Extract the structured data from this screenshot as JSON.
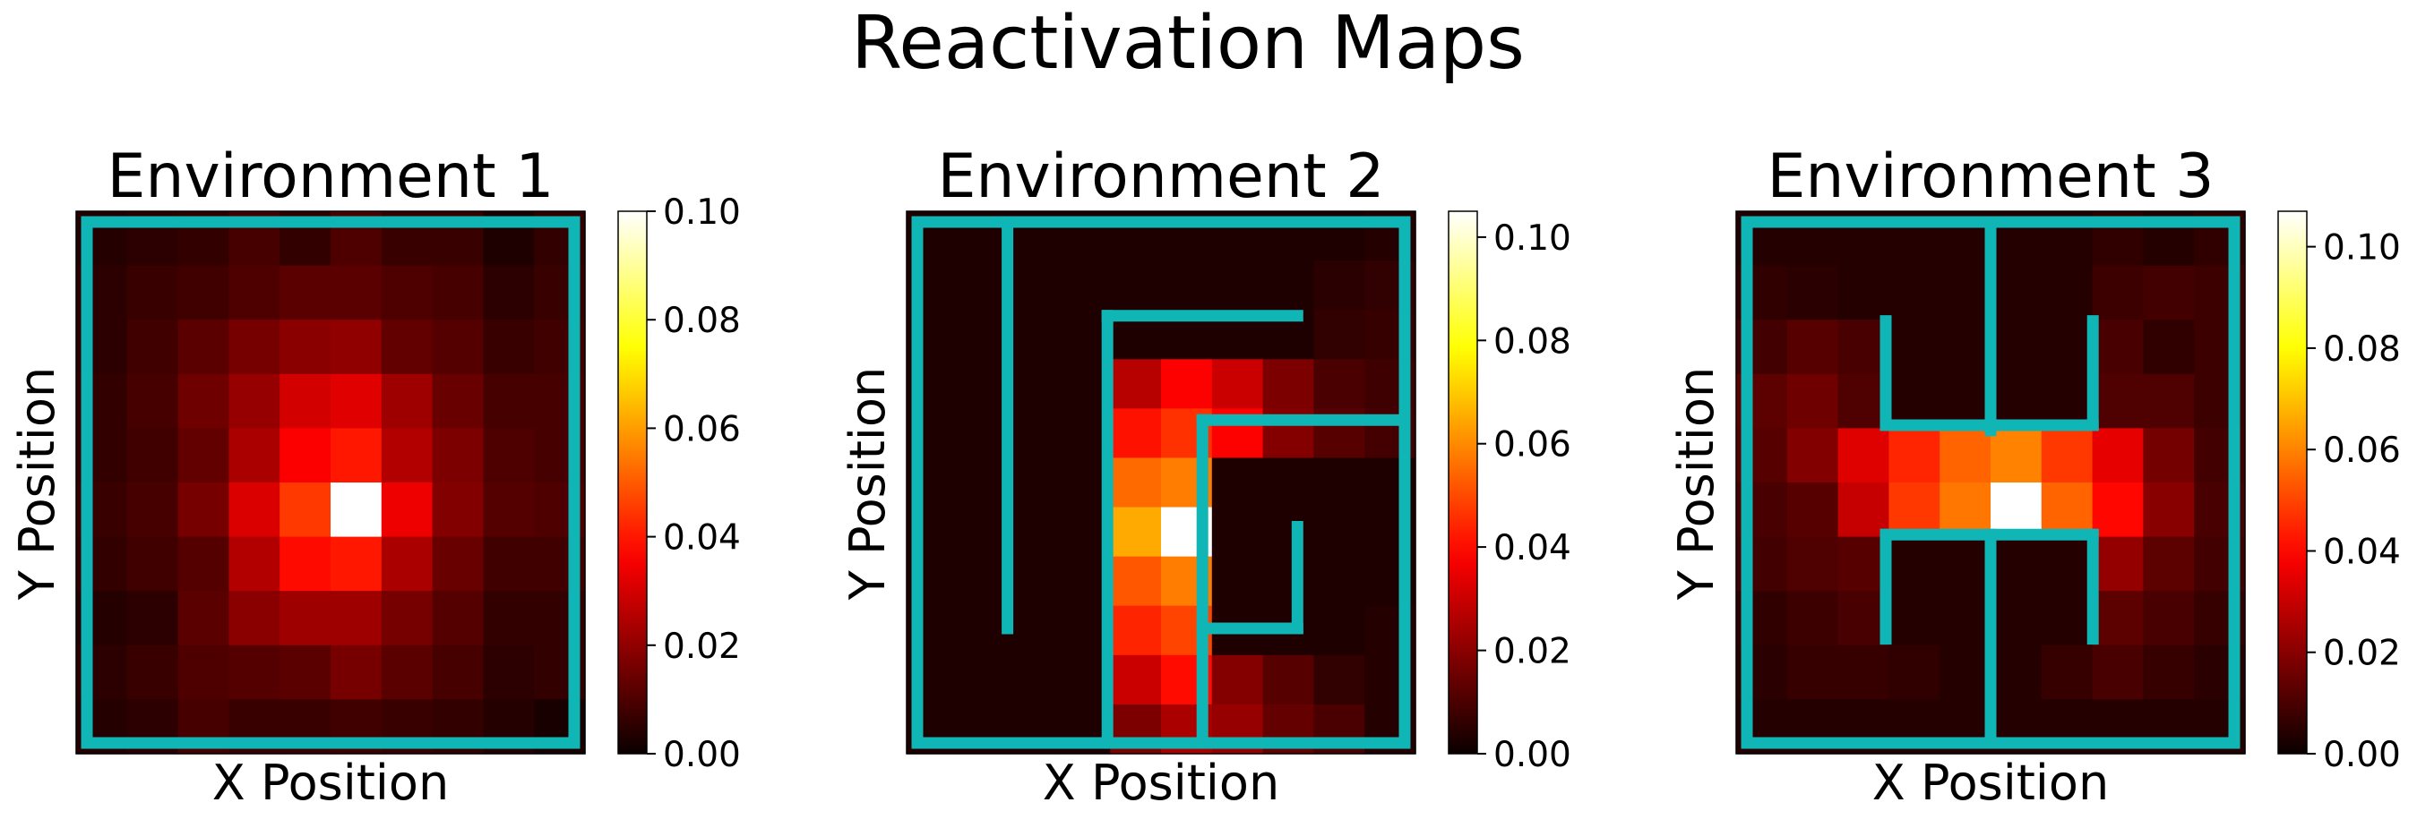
{
  "figure_title": "Reactivation Maps",
  "wall_color": "#10b5b5",
  "colormap": "hot",
  "chart_data": [
    {
      "type": "heatmap",
      "title": "Environment 1",
      "xlabel": "X Position",
      "ylabel": "Y Position",
      "colorbar": {
        "min": 0.0,
        "max": 0.1,
        "ticks": [
          0.0,
          0.02,
          0.04,
          0.06,
          0.08,
          0.1
        ],
        "tick_labels": [
          "0.00",
          "0.02",
          "0.04",
          "0.06",
          "0.08",
          "0.10"
        ]
      },
      "values": [
        [
          0.004,
          0.005,
          0.006,
          0.009,
          0.006,
          0.01,
          0.007,
          0.007,
          0.003,
          0.006
        ],
        [
          0.005,
          0.007,
          0.008,
          0.01,
          0.012,
          0.012,
          0.01,
          0.009,
          0.005,
          0.007
        ],
        [
          0.005,
          0.008,
          0.012,
          0.016,
          0.019,
          0.02,
          0.013,
          0.011,
          0.007,
          0.008
        ],
        [
          0.006,
          0.009,
          0.015,
          0.021,
          0.03,
          0.032,
          0.022,
          0.014,
          0.009,
          0.009
        ],
        [
          0.006,
          0.008,
          0.013,
          0.024,
          0.036,
          0.04,
          0.025,
          0.017,
          0.01,
          0.009
        ],
        [
          0.007,
          0.009,
          0.016,
          0.031,
          0.045,
          0.1,
          0.034,
          0.018,
          0.011,
          0.01
        ],
        [
          0.006,
          0.008,
          0.011,
          0.025,
          0.038,
          0.04,
          0.024,
          0.014,
          0.008,
          0.008
        ],
        [
          0.004,
          0.005,
          0.012,
          0.019,
          0.022,
          0.022,
          0.016,
          0.011,
          0.006,
          0.006
        ],
        [
          0.005,
          0.007,
          0.01,
          0.011,
          0.012,
          0.016,
          0.012,
          0.009,
          0.005,
          0.006
        ],
        [
          0.004,
          0.005,
          0.009,
          0.007,
          0.007,
          0.008,
          0.007,
          0.006,
          0.004,
          0.002
        ]
      ],
      "walls": [
        [
          0,
          0,
          10,
          0
        ],
        [
          10,
          0,
          10,
          10
        ],
        [
          10,
          10,
          0,
          10
        ],
        [
          0,
          10,
          0,
          0
        ]
      ]
    },
    {
      "type": "heatmap",
      "title": "Environment 2",
      "xlabel": "X Position",
      "ylabel": "Y Position",
      "colorbar": {
        "min": 0.0,
        "max": 0.105,
        "ticks": [
          0.0,
          0.02,
          0.04,
          0.06,
          0.08,
          0.1
        ],
        "tick_labels": [
          "0.00",
          "0.02",
          "0.04",
          "0.06",
          "0.08",
          "0.10"
        ]
      },
      "values": [
        [
          0.003,
          0.003,
          0.003,
          0.003,
          0.003,
          0.003,
          0.003,
          0.003,
          0.003,
          0.004
        ],
        [
          0.003,
          0.003,
          0.003,
          0.003,
          0.003,
          0.003,
          0.003,
          0.003,
          0.005,
          0.006
        ],
        [
          0.003,
          0.003,
          0.003,
          0.003,
          0.003,
          0.003,
          0.003,
          0.003,
          0.006,
          0.007
        ],
        [
          0.003,
          0.003,
          0.003,
          0.003,
          0.027,
          0.038,
          0.03,
          0.018,
          0.01,
          0.008
        ],
        [
          0.003,
          0.003,
          0.003,
          0.003,
          0.041,
          0.046,
          0.038,
          0.019,
          0.012,
          0.009
        ],
        [
          0.003,
          0.003,
          0.003,
          0.003,
          0.055,
          0.058,
          0.003,
          0.003,
          0.003,
          0.003
        ],
        [
          0.003,
          0.003,
          0.003,
          0.003,
          0.065,
          0.105,
          0.003,
          0.003,
          0.003,
          0.003
        ],
        [
          0.003,
          0.003,
          0.003,
          0.003,
          0.052,
          0.058,
          0.003,
          0.003,
          0.003,
          0.003
        ],
        [
          0.003,
          0.003,
          0.003,
          0.003,
          0.044,
          0.049,
          0.003,
          0.003,
          0.003,
          0.004
        ],
        [
          0.003,
          0.003,
          0.003,
          0.003,
          0.03,
          0.04,
          0.019,
          0.012,
          0.006,
          0.004
        ],
        [
          0.003,
          0.003,
          0.003,
          0.003,
          0.018,
          0.025,
          0.022,
          0.014,
          0.01,
          0.004
        ]
      ],
      "walls": [
        [
          0,
          0,
          10,
          0
        ],
        [
          10,
          0,
          10,
          10
        ],
        [
          10,
          10,
          0,
          10
        ],
        [
          0,
          10,
          0,
          0
        ],
        [
          1.85,
          0,
          1.85,
          7.8
        ],
        [
          3.9,
          10,
          3.9,
          1.8
        ],
        [
          3.9,
          1.8,
          7.8,
          1.8
        ],
        [
          5.85,
          10,
          5.85,
          3.8
        ],
        [
          5.85,
          3.8,
          10,
          3.8
        ],
        [
          5.85,
          7.8,
          7.8,
          7.8
        ],
        [
          7.8,
          7.8,
          7.8,
          5.85
        ]
      ]
    },
    {
      "type": "heatmap",
      "title": "Environment 3",
      "xlabel": "X Position",
      "ylabel": "Y Position",
      "colorbar": {
        "min": 0.0,
        "max": 0.107,
        "ticks": [
          0.0,
          0.02,
          0.04,
          0.06,
          0.08,
          0.1
        ],
        "tick_labels": [
          "0.00",
          "0.02",
          "0.04",
          "0.06",
          "0.08",
          "0.10"
        ]
      },
      "values": [
        [
          0.004,
          0.004,
          0.004,
          0.004,
          0.004,
          0.004,
          0.004,
          0.006,
          0.004,
          0.006
        ],
        [
          0.006,
          0.005,
          0.004,
          0.004,
          0.004,
          0.004,
          0.004,
          0.008,
          0.009,
          0.008
        ],
        [
          0.009,
          0.012,
          0.01,
          0.004,
          0.004,
          0.004,
          0.004,
          0.01,
          0.006,
          0.008
        ],
        [
          0.013,
          0.016,
          0.011,
          0.004,
          0.004,
          0.004,
          0.004,
          0.011,
          0.011,
          0.008
        ],
        [
          0.012,
          0.019,
          0.034,
          0.045,
          0.055,
          0.06,
          0.048,
          0.035,
          0.017,
          0.009
        ],
        [
          0.01,
          0.012,
          0.03,
          0.048,
          0.058,
          0.107,
          0.055,
          0.04,
          0.02,
          0.01
        ],
        [
          0.009,
          0.011,
          0.012,
          0.004,
          0.004,
          0.004,
          0.004,
          0.022,
          0.013,
          0.009
        ],
        [
          0.006,
          0.008,
          0.01,
          0.004,
          0.004,
          0.004,
          0.004,
          0.013,
          0.01,
          0.007
        ],
        [
          0.005,
          0.007,
          0.007,
          0.006,
          0.004,
          0.004,
          0.007,
          0.01,
          0.007,
          0.005
        ],
        [
          0.004,
          0.004,
          0.004,
          0.004,
          0.004,
          0.004,
          0.004,
          0.004,
          0.004,
          0.004
        ]
      ],
      "walls": [
        [
          0,
          0,
          10,
          0
        ],
        [
          10,
          0,
          10,
          10
        ],
        [
          10,
          10,
          0,
          10
        ],
        [
          0,
          10,
          0,
          0
        ],
        [
          5,
          0,
          5,
          4
        ],
        [
          5,
          6,
          5,
          10
        ],
        [
          2.85,
          1.9,
          2.85,
          3.9
        ],
        [
          2.85,
          3.9,
          7.1,
          3.9
        ],
        [
          7.1,
          3.9,
          7.1,
          1.9
        ],
        [
          2.85,
          8,
          2.85,
          6
        ],
        [
          2.85,
          6,
          7.1,
          6
        ],
        [
          7.1,
          6,
          7.1,
          8
        ]
      ]
    }
  ]
}
